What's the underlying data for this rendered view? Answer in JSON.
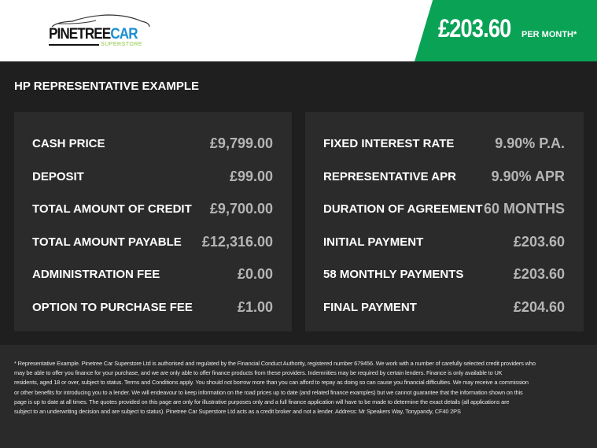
{
  "header": {
    "brand": {
      "name": "PINETREE",
      "name_accent": "CAR",
      "sub": "SUPERSTORE"
    },
    "price": "£203.60",
    "per_month": "PER MONTH*",
    "accent_color": "#0aa356"
  },
  "title": "HP REPRESENTATIVE EXAMPLE",
  "left": [
    {
      "label": "CASH PRICE",
      "value": "£9,799.00"
    },
    {
      "label": "DEPOSIT",
      "value": "£99.00"
    },
    {
      "label": "TOTAL AMOUNT OF CREDIT",
      "value": "£9,700.00"
    },
    {
      "label": "TOTAL AMOUNT PAYABLE",
      "value": "£12,316.00"
    },
    {
      "label": "ADMINISTRATION FEE",
      "value": "£0.00"
    },
    {
      "label": "OPTION TO PURCHASE FEE",
      "value": "£1.00"
    }
  ],
  "right": [
    {
      "label": "FIXED INTEREST RATE",
      "value": "9.90% P.A."
    },
    {
      "label": "REPRESENTATIVE APR",
      "value": "9.90% APR"
    },
    {
      "label": "DURATION OF AGREEMENT",
      "value": "60 MONTHS"
    },
    {
      "label": "INITIAL PAYMENT",
      "value": "£203.60"
    },
    {
      "label": "58 MONTHLY PAYMENTS",
      "value": "£203.60"
    },
    {
      "label": "FINAL PAYMENT",
      "value": "£204.60"
    }
  ],
  "disclaimer": [
    "* Representative Example. Pinetree Car Superstore Ltd is authorised and regulated by the Financial Conduct Authority, registered number 679456. We work with a number of carefully selected credit providers who",
    "may be able to offer you finance for your purchase, and we are only able to offer finance products from these providers. Indemnities may be required by certain lenders. Finance is only available to UK",
    "residents, aged 18 or over, subject to status. Terms and Conditions apply. You should not borrow more than you can afford to repay as doing so can cause you financial difficulties. We may receive a commission",
    "or other benefits for introducing you to a lender. We will endeavour to keep information on the road prices up to date (and related finance examples) but we cannot guarantee that the information shown on this",
    "page is up to date at all times. The quotes provided on this page are only for illustrative purposes only and a full finance application will have to be made to determine the exact details (all applications are",
    "subject to an underwriting decision and are subject to status). Pinetree Car Superstore Ltd acts as a credit broker and not a lender. Address: Mr Speakers Way, Tonypandy, CF40 2PS"
  ]
}
